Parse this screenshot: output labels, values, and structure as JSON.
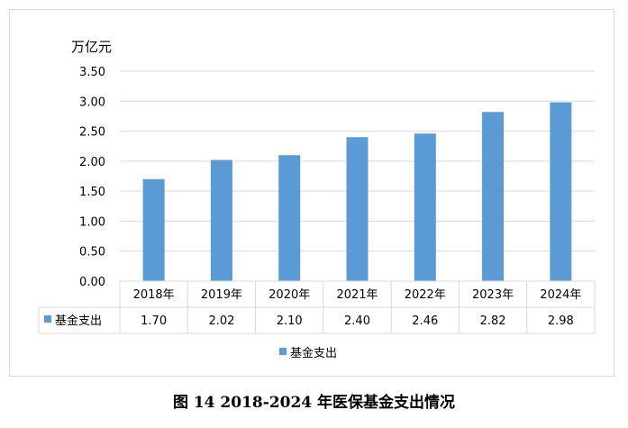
{
  "caption": "图 14   2018-2024 年医保基金支出情况",
  "chart_data": {
    "type": "bar",
    "unit_label": "万亿元",
    "categories": [
      "2018年",
      "2019年",
      "2020年",
      "2021年",
      "2022年",
      "2023年",
      "2024年"
    ],
    "series": [
      {
        "name": "基金支出",
        "values": [
          1.7,
          2.02,
          2.1,
          2.4,
          2.46,
          2.82,
          2.98
        ],
        "value_labels": [
          "1.70",
          "2.02",
          "2.10",
          "2.40",
          "2.46",
          "2.82",
          "2.98"
        ],
        "color": "#5b9bd5"
      }
    ],
    "ylim": [
      0,
      3.5
    ],
    "yticks": [
      "0.00",
      "0.50",
      "1.00",
      "1.50",
      "2.00",
      "2.50",
      "3.00",
      "3.50"
    ],
    "grid": true,
    "legend_position": "bottom",
    "data_table": true
  },
  "colors": {
    "bar": "#5b9bd5",
    "grid": "#d9d9d9",
    "text": "#000000"
  }
}
